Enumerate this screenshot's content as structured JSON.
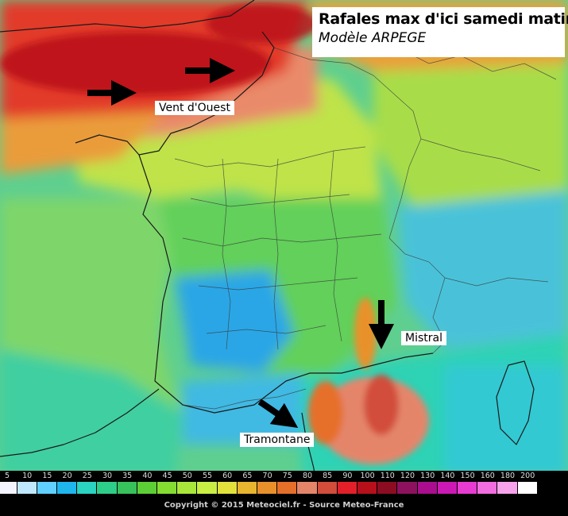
{
  "title": {
    "line1": "Rafales max d'ici samedi matin",
    "line2": "Modèle ARPEGE"
  },
  "annotations": {
    "west": "Vent d'Ouest",
    "mistral": "Mistral",
    "tramontane": "Tramontane"
  },
  "legend": {
    "values": [
      "5",
      "10",
      "15",
      "20",
      "25",
      "30",
      "35",
      "40",
      "45",
      "50",
      "55",
      "60",
      "65",
      "70",
      "75",
      "80",
      "85",
      "90",
      "100",
      "110",
      "120",
      "130",
      "140",
      "150",
      "160",
      "180",
      "200"
    ],
    "colors": [
      "#f4f4ff",
      "#bfe8ff",
      "#5fd0ff",
      "#1fb6ee",
      "#2ad4c0",
      "#2dce8a",
      "#37c25b",
      "#5ccf36",
      "#86dd32",
      "#a9e83a",
      "#c9ef45",
      "#e3e23c",
      "#e8b52e",
      "#e8912b",
      "#e66f2a",
      "#e4856a",
      "#d24d3a",
      "#e3202a",
      "#b8101b",
      "#8c0d22",
      "#8e1160",
      "#aa0e8e",
      "#cc18b4",
      "#e83bd2",
      "#f26ee0",
      "#f7a3ec",
      "#ffffff"
    ]
  },
  "copyright": "Copyright © 2015 Meteociel.fr - Source Meteo-France"
}
